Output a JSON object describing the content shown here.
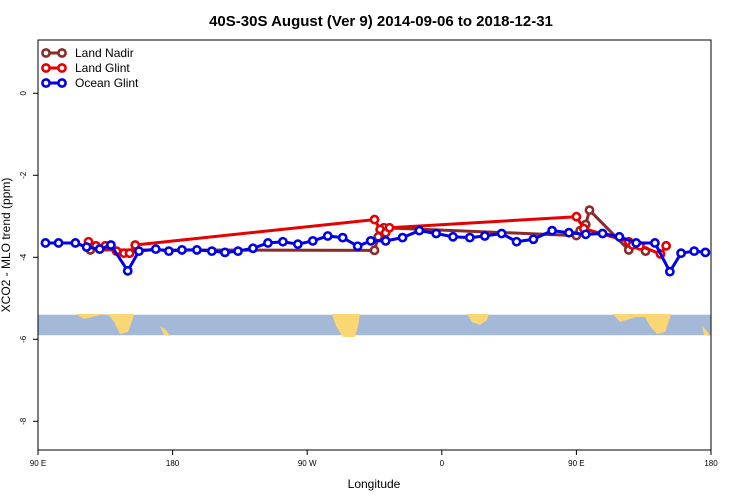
{
  "chart_data": {
    "type": "line",
    "title": "40S-30S August (Ver 9)   2014-09-06 to 2018-12-31",
    "xlabel": "Longitude",
    "ylabel": "XCO2 - MLO trend (ppm)",
    "xlim": [
      90,
      450
    ],
    "ylim": [
      -8.7,
      1.3
    ],
    "x_ticks": [
      {
        "value": 90,
        "label": "90 E"
      },
      {
        "value": 180,
        "label": "180"
      },
      {
        "value": 270,
        "label": "90 W"
      },
      {
        "value": 360,
        "label": "0"
      },
      {
        "value": 450,
        "label": "90 E"
      },
      {
        "value": 540,
        "label": "180"
      }
    ],
    "y_ticks": [
      {
        "value": 0,
        "label": "0"
      },
      {
        "value": -2,
        "label": "-2"
      },
      {
        "value": -4,
        "label": "-4"
      },
      {
        "value": -6,
        "label": "-6"
      },
      {
        "value": -8,
        "label": "-8"
      }
    ],
    "legend_position": "top-left",
    "map_band": {
      "y_top": -5.4,
      "y_bottom": -5.9,
      "ocean_color": "#a3b9d7",
      "land_color": "#fbd675"
    },
    "series": [
      {
        "name": "Land Nadir",
        "color": "#8b2a2a",
        "points": [
          [
            118,
            -3.82
          ],
          [
            270,
            -3.83
          ],
          [
            272,
            -3.5
          ],
          [
            275,
            -3.28
          ],
          [
            378,
            -3.47
          ],
          [
            380,
            -3.35
          ],
          [
            383,
            -3.2
          ],
          [
            385,
            -2.85
          ],
          [
            406,
            -3.82
          ],
          [
            411,
            -3.7
          ],
          [
            415,
            -3.85
          ]
        ]
      },
      {
        "name": "Land Glint",
        "color": "#e60000",
        "points": [
          [
            117,
            -3.62
          ],
          [
            121,
            -3.72
          ],
          [
            126,
            -3.72
          ],
          [
            132,
            -3.85
          ],
          [
            136,
            -3.9
          ],
          [
            139,
            -3.9
          ],
          [
            142,
            -3.7
          ],
          [
            270,
            -3.08
          ],
          [
            273,
            -3.32
          ],
          [
            276,
            -3.4
          ],
          [
            278,
            -3.28
          ],
          [
            378,
            -3.01
          ],
          [
            382,
            -3.3
          ],
          [
            406,
            -3.62
          ],
          [
            408,
            -3.7
          ],
          [
            412,
            -3.72
          ],
          [
            423,
            -3.92
          ],
          [
            426,
            -3.72
          ]
        ]
      },
      {
        "name": "Ocean Glint",
        "color": "#0000e6",
        "points": [
          [
            94,
            -3.65
          ],
          [
            101,
            -3.65
          ],
          [
            110,
            -3.65
          ],
          [
            116,
            -3.75
          ],
          [
            123,
            -3.8
          ],
          [
            129,
            -3.7
          ],
          [
            138,
            -4.33
          ],
          [
            144,
            -3.85
          ],
          [
            153,
            -3.8
          ],
          [
            160,
            -3.85
          ],
          [
            167,
            -3.82
          ],
          [
            175,
            -3.82
          ],
          [
            183,
            -3.85
          ],
          [
            190,
            -3.88
          ],
          [
            197,
            -3.85
          ],
          [
            205,
            -3.78
          ],
          [
            213,
            -3.65
          ],
          [
            221,
            -3.62
          ],
          [
            229,
            -3.68
          ],
          [
            237,
            -3.6
          ],
          [
            245,
            -3.48
          ],
          [
            253,
            -3.52
          ],
          [
            261,
            -3.73
          ],
          [
            268,
            -3.6
          ],
          [
            276,
            -3.6
          ],
          [
            285,
            -3.52
          ],
          [
            294,
            -3.35
          ],
          [
            303,
            -3.42
          ],
          [
            312,
            -3.5
          ],
          [
            321,
            -3.52
          ],
          [
            329,
            -3.48
          ],
          [
            338,
            -3.42
          ],
          [
            346,
            -3.62
          ],
          [
            355,
            -3.56
          ],
          [
            365,
            -3.35
          ],
          [
            374,
            -3.4
          ],
          [
            383,
            -3.44
          ],
          [
            392,
            -3.42
          ],
          [
            401,
            -3.5
          ],
          [
            410,
            -3.65
          ],
          [
            420,
            -3.65
          ],
          [
            428,
            -4.35
          ],
          [
            434,
            -3.9
          ],
          [
            441,
            -3.85
          ],
          [
            447,
            -3.88
          ]
        ]
      }
    ]
  }
}
